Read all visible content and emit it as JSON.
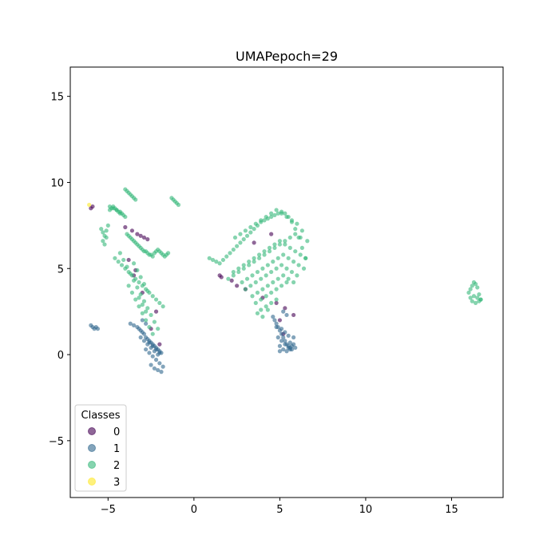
{
  "chart_data": {
    "type": "scatter",
    "title": "UMAPepoch=29",
    "xlabel": "",
    "ylabel": "",
    "xlim": [
      -7.2,
      18.0
    ],
    "ylim": [
      -8.3,
      16.7
    ],
    "x_ticks": [
      -5,
      0,
      5,
      10,
      15
    ],
    "y_ticks": [
      -5,
      0,
      5,
      10,
      15
    ],
    "x_tick_labels": [
      "−5",
      "0",
      "5",
      "10",
      "15"
    ],
    "y_tick_labels": [
      "−5",
      "0",
      "5",
      "10",
      "15"
    ],
    "grid": false,
    "legend": {
      "title": "Classes",
      "placement": "lower-left",
      "entries": [
        {
          "label": "0",
          "color": "#440154"
        },
        {
          "label": "1",
          "color": "#31688e"
        },
        {
          "label": "2",
          "color": "#35b779"
        },
        {
          "label": "3",
          "color": "#fde725"
        }
      ]
    },
    "series": [
      {
        "name": "0",
        "color": "#440154",
        "x": [
          -4.0,
          -3.6,
          -3.3,
          -3.1,
          -2.9,
          -2.7,
          -5.9,
          -6.0,
          -3.8,
          -3.5,
          -3.0,
          -2.2,
          1.5,
          1.6,
          2.2,
          2.5,
          3.0,
          4.0,
          4.8,
          5.3,
          5.8,
          -2.5,
          -2.0,
          -3.4,
          5.0,
          4.5,
          3.5,
          5.2
        ],
        "y": [
          7.4,
          7.2,
          7.0,
          6.9,
          6.8,
          6.7,
          8.6,
          8.5,
          5.5,
          4.6,
          3.6,
          2.5,
          4.6,
          4.5,
          4.3,
          4.0,
          3.8,
          3.3,
          3.0,
          2.7,
          2.3,
          1.5,
          0.6,
          4.9,
          2.0,
          7.0,
          6.5,
          1.2
        ]
      },
      {
        "name": "1",
        "color": "#31688e",
        "x": [
          -6.0,
          -5.9,
          -5.8,
          -5.7,
          -5.6,
          -3.7,
          -3.5,
          -3.3,
          -3.2,
          -3.1,
          -3.0,
          -2.9,
          -2.8,
          -2.7,
          -2.6,
          -2.5,
          -2.4,
          -2.3,
          -2.2,
          -2.1,
          -2.0,
          -1.9,
          -3.1,
          -2.9,
          -2.7,
          -2.5,
          -2.3,
          -2.1,
          -2.8,
          -2.6,
          -2.4,
          -2.2,
          -2.0,
          -1.8,
          -2.5,
          -2.3,
          -2.1,
          -1.9,
          -2.6,
          -2.4,
          -2.2,
          -2.0,
          -3.0,
          -2.8,
          4.6,
          4.7,
          4.8,
          4.9,
          5.0,
          5.1,
          5.2,
          5.3,
          5.4,
          5.5,
          5.6,
          5.7,
          5.8,
          5.9,
          4.9,
          5.1,
          5.3,
          5.5,
          5.7,
          5.0,
          5.2,
          5.4,
          5.6,
          5.1,
          5.3,
          5.5,
          5.2,
          5.4,
          5.0,
          5.8,
          4.8,
          5.6
        ],
        "y": [
          1.7,
          1.6,
          1.5,
          1.6,
          1.5,
          1.8,
          1.7,
          1.6,
          1.5,
          1.4,
          1.3,
          1.2,
          1.0,
          0.9,
          0.8,
          0.7,
          0.6,
          0.5,
          0.4,
          0.3,
          0.2,
          0.1,
          1.0,
          0.8,
          0.6,
          0.4,
          0.2,
          0.0,
          0.3,
          0.1,
          -0.1,
          -0.3,
          -0.5,
          -0.7,
          -0.6,
          -0.8,
          -0.9,
          -1.0,
          0.7,
          0.5,
          0.3,
          0.1,
          2.0,
          1.8,
          2.2,
          2.0,
          1.8,
          1.6,
          1.4,
          1.2,
          1.0,
          0.8,
          0.6,
          0.5,
          0.4,
          0.5,
          0.6,
          0.4,
          1.0,
          0.8,
          0.6,
          0.4,
          0.3,
          0.5,
          0.3,
          0.2,
          0.3,
          1.5,
          1.3,
          1.1,
          2.5,
          2.3,
          0.2,
          1.0,
          1.6,
          0.7
        ]
      },
      {
        "name": "2",
        "color": "#35b779",
        "x": [
          -5.3,
          -5.2,
          -5.1,
          -5.0,
          -4.9,
          -4.8,
          -4.7,
          -4.6,
          -4.5,
          -4.4,
          -4.3,
          -4.2,
          -4.1,
          -4.0,
          -3.9,
          -3.8,
          -3.7,
          -3.6,
          -3.5,
          -3.4,
          -3.3,
          -3.2,
          -3.1,
          -3.0,
          -2.9,
          -2.8,
          -2.7,
          -2.6,
          -2.5,
          -2.4,
          -2.3,
          -2.2,
          -2.1,
          -2.0,
          -1.9,
          -1.8,
          -1.7,
          -1.6,
          -1.5,
          -4.6,
          -4.4,
          -4.2,
          -4.0,
          -3.8,
          -3.6,
          -3.4,
          -3.2,
          -3.0,
          -2.8,
          -2.6,
          -2.4,
          -2.2,
          -2.0,
          -1.8,
          -4.3,
          -4.1,
          -3.9,
          -3.7,
          -3.5,
          -3.3,
          -3.1,
          -2.9,
          -2.7,
          -2.5,
          -2.3,
          -2.1,
          -3.8,
          -3.6,
          -3.4,
          -3.2,
          -3.0,
          -2.8,
          -2.6,
          -2.4,
          -3.5,
          -3.3,
          -3.1,
          -2.9,
          -2.7,
          -3.2,
          -3.0,
          -2.8,
          -4.0,
          -3.9,
          -3.8,
          -3.7,
          -3.6,
          -3.5,
          -3.4,
          -1.3,
          -1.2,
          -1.1,
          -1.0,
          -0.9,
          -5.4,
          -5.3,
          -5.2,
          -5.1,
          -4.9,
          -4.7,
          -4.5,
          -4.3,
          0.9,
          1.1,
          1.3,
          1.5,
          1.7,
          1.9,
          2.1,
          2.3,
          2.5,
          2.7,
          2.9,
          3.1,
          3.3,
          3.5,
          3.7,
          3.9,
          4.1,
          4.3,
          4.5,
          4.7,
          4.9,
          5.1,
          5.3,
          5.5,
          5.7,
          5.9,
          6.1,
          6.3,
          6.5,
          2.3,
          2.6,
          2.9,
          3.2,
          3.5,
          3.8,
          4.1,
          4.4,
          4.7,
          5.0,
          5.3,
          5.6,
          5.9,
          6.2,
          6.5,
          2.8,
          3.1,
          3.4,
          3.7,
          4.0,
          4.3,
          4.6,
          4.9,
          5.2,
          5.5,
          5.8,
          6.1,
          6.4,
          3.0,
          3.3,
          3.6,
          3.9,
          4.2,
          4.5,
          4.8,
          5.1,
          5.4,
          5.7,
          6.0,
          3.4,
          3.7,
          4.0,
          4.3,
          4.6,
          4.9,
          5.2,
          5.5,
          5.8,
          2.4,
          2.7,
          3.0,
          3.3,
          3.6,
          3.9,
          4.2,
          4.5,
          4.8,
          5.1,
          5.4,
          5.7,
          6.0,
          6.3,
          6.6,
          2.0,
          2.3,
          2.6,
          2.9,
          3.2,
          3.5,
          3.8,
          4.1,
          4.4,
          4.7,
          5.0,
          5.3,
          5.6,
          5.9,
          6.2,
          3.6,
          3.9,
          4.2,
          4.5,
          4.8,
          5.1,
          5.4,
          3.9,
          4.2,
          4.5,
          4.8,
          3.7,
          4.0,
          4.3,
          16.0,
          16.1,
          16.2,
          16.3,
          16.4,
          16.5,
          16.6,
          16.7,
          16.2,
          16.4,
          16.6,
          16.3,
          16.5,
          16.1,
          16.7
        ],
        "y": [
          6.6,
          6.4,
          7.2,
          7.5,
          8.4,
          8.5,
          8.6,
          8.5,
          8.4,
          8.3,
          8.2,
          8.2,
          8.1,
          8.0,
          7.0,
          6.9,
          6.8,
          6.7,
          6.6,
          6.5,
          6.4,
          6.3,
          6.2,
          6.1,
          6.0,
          6.0,
          5.9,
          5.8,
          5.8,
          5.7,
          5.9,
          6.0,
          6.1,
          6.0,
          5.9,
          5.8,
          5.7,
          5.8,
          5.9,
          5.6,
          5.4,
          5.2,
          5.0,
          4.8,
          4.6,
          4.4,
          4.2,
          4.0,
          3.8,
          3.6,
          3.4,
          3.2,
          3.0,
          2.8,
          5.9,
          5.5,
          5.1,
          4.7,
          4.3,
          3.9,
          3.5,
          3.1,
          2.7,
          2.3,
          1.9,
          1.5,
          4.0,
          3.6,
          3.2,
          2.8,
          2.4,
          2.0,
          1.6,
          1.2,
          5.3,
          4.9,
          4.5,
          4.1,
          3.7,
          3.3,
          2.9,
          2.5,
          9.6,
          9.5,
          9.4,
          9.3,
          9.2,
          9.1,
          9.0,
          9.1,
          9.0,
          8.9,
          8.8,
          8.7,
          7.3,
          7.1,
          6.9,
          6.8,
          8.6,
          8.5,
          8.4,
          8.3,
          5.6,
          5.5,
          5.4,
          5.3,
          5.5,
          5.7,
          5.9,
          6.1,
          6.3,
          6.5,
          6.7,
          6.9,
          7.1,
          7.3,
          7.5,
          7.7,
          7.8,
          7.9,
          8.0,
          8.1,
          8.2,
          8.3,
          8.2,
          8.0,
          7.7,
          7.3,
          6.8,
          6.2,
          5.6,
          4.8,
          5.0,
          5.2,
          5.4,
          5.6,
          5.8,
          6.0,
          6.2,
          6.4,
          6.6,
          6.4,
          6.2,
          6.0,
          5.8,
          5.6,
          4.2,
          4.4,
          4.6,
          4.8,
          5.0,
          5.2,
          5.4,
          5.6,
          5.8,
          5.6,
          5.4,
          5.2,
          5.0,
          3.8,
          4.0,
          4.2,
          4.4,
          4.6,
          4.8,
          5.0,
          5.2,
          5.0,
          4.8,
          4.6,
          3.4,
          3.6,
          3.8,
          4.0,
          4.2,
          4.4,
          4.6,
          4.4,
          4.2,
          6.8,
          7.0,
          7.2,
          7.4,
          7.6,
          7.8,
          8.0,
          8.2,
          8.4,
          8.2,
          8.0,
          7.8,
          7.6,
          7.2,
          6.6,
          4.4,
          4.6,
          4.8,
          5.0,
          5.2,
          5.4,
          5.6,
          5.8,
          6.0,
          6.2,
          6.4,
          6.6,
          6.8,
          7.0,
          6.8,
          3.0,
          3.2,
          3.4,
          3.6,
          3.8,
          4.0,
          4.2,
          2.6,
          2.8,
          3.0,
          3.2,
          2.4,
          2.2,
          2.6,
          3.6,
          3.8,
          4.0,
          4.2,
          4.1,
          3.9,
          3.5,
          3.2,
          3.1,
          3.0,
          3.1,
          3.4,
          3.3,
          3.3,
          3.2
        ]
      },
      {
        "name": "3",
        "color": "#fde725",
        "x": [
          -6.1
        ],
        "y": [
          8.7
        ]
      }
    ]
  }
}
